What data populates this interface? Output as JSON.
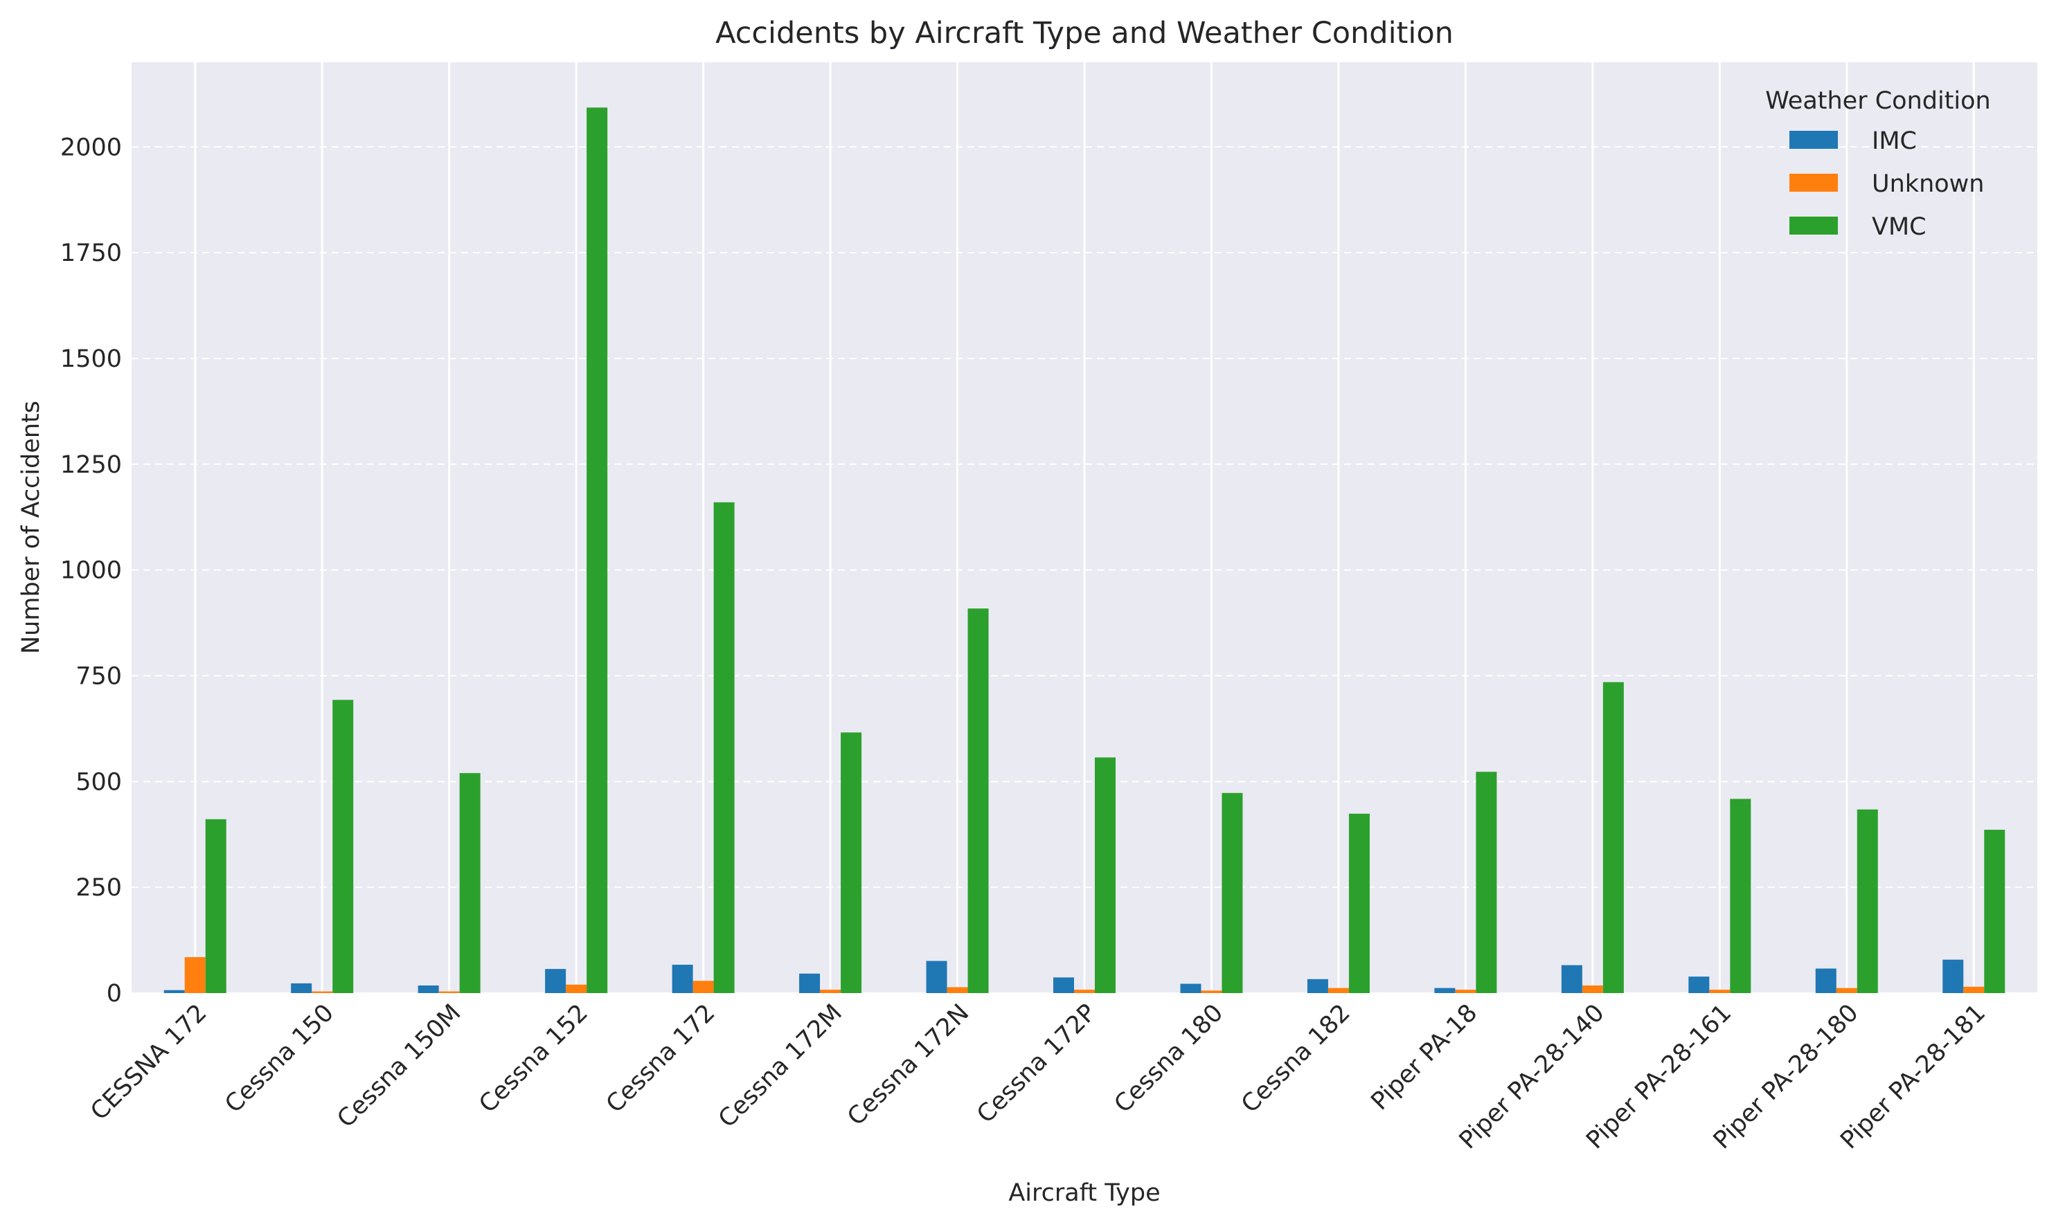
{
  "chart_data": {
    "type": "bar",
    "title": "Accidents by Aircraft Type and Weather Condition",
    "xlabel": "Aircraft Type",
    "ylabel": "Number of Accidents",
    "ylim": [
      0,
      2200
    ],
    "yticks": [
      0,
      250,
      500,
      750,
      1000,
      1250,
      1500,
      1750,
      2000
    ],
    "grid": true,
    "legend_title": "Weather Condition",
    "legend_position": "top-right",
    "categories": [
      "CESSNA 172",
      "Cessna 150",
      "Cessna 150M",
      "Cessna 152",
      "Cessna 172",
      "Cessna 172M",
      "Cessna 172N",
      "Cessna 172P",
      "Cessna 180",
      "Cessna 182",
      "Piper PA-18",
      "Piper PA-28-140",
      "Piper PA-28-161",
      "Piper PA-28-180",
      "Piper PA-28-181"
    ],
    "series": [
      {
        "name": "IMC",
        "color": "#1f77b4",
        "values": [
          7,
          23,
          18,
          57,
          67,
          46,
          76,
          37,
          22,
          33,
          12,
          66,
          39,
          58,
          79
        ]
      },
      {
        "name": "Unknown",
        "color": "#ff7f0e",
        "values": [
          85,
          4,
          4,
          20,
          29,
          8,
          14,
          8,
          6,
          12,
          8,
          18,
          8,
          12,
          15
        ]
      },
      {
        "name": "VMC",
        "color": "#2ca02c",
        "values": [
          411,
          693,
          520,
          2093,
          1160,
          616,
          909,
          557,
          473,
          424,
          523,
          735,
          459,
          434,
          386
        ]
      }
    ]
  }
}
